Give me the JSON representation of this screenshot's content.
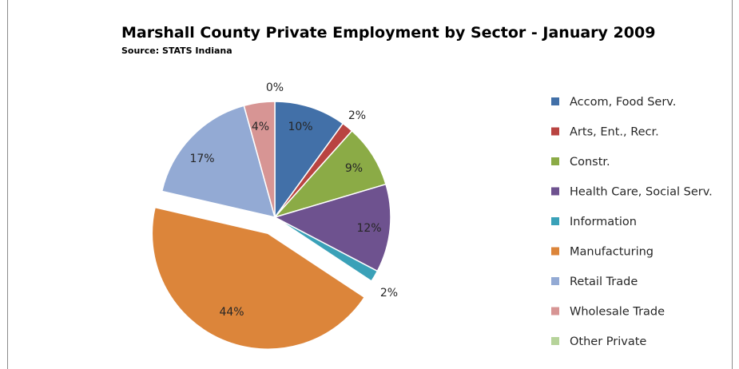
{
  "chart_data": {
    "type": "pie",
    "title": "Marshall County Private Employment by Sector - January 2009",
    "subtitle": "Source:  STATS Indiana",
    "legend_position": "right",
    "slices": [
      {
        "name": "Accom, Food Serv.",
        "value": 10,
        "label": "10%",
        "color": "#4270a8"
      },
      {
        "name": "Arts, Ent., Recr.",
        "value": 1.6,
        "label": "2%",
        "color": "#b94441"
      },
      {
        "name": "Constr.",
        "value": 8.8,
        "label": "9%",
        "color": "#8bab46"
      },
      {
        "name": "Health Care, Social Serv.",
        "value": 12.3,
        "label": "12%",
        "color": "#6e528f"
      },
      {
        "name": "Information",
        "value": 1.6,
        "label": "2%",
        "color": "#3aa1b8"
      },
      {
        "name": "Manufacturing",
        "value": 44.3,
        "label": "44%",
        "color": "#dc853a"
      },
      {
        "name": "Retail Trade",
        "value": 17.1,
        "label": "17%",
        "color": "#93aad4"
      },
      {
        "name": "Wholesale Trade",
        "value": 4.3,
        "label": "4%",
        "color": "#d79594"
      },
      {
        "name": "Other Private",
        "value": 0,
        "label": "0%",
        "color": "#b6d39a"
      }
    ]
  }
}
